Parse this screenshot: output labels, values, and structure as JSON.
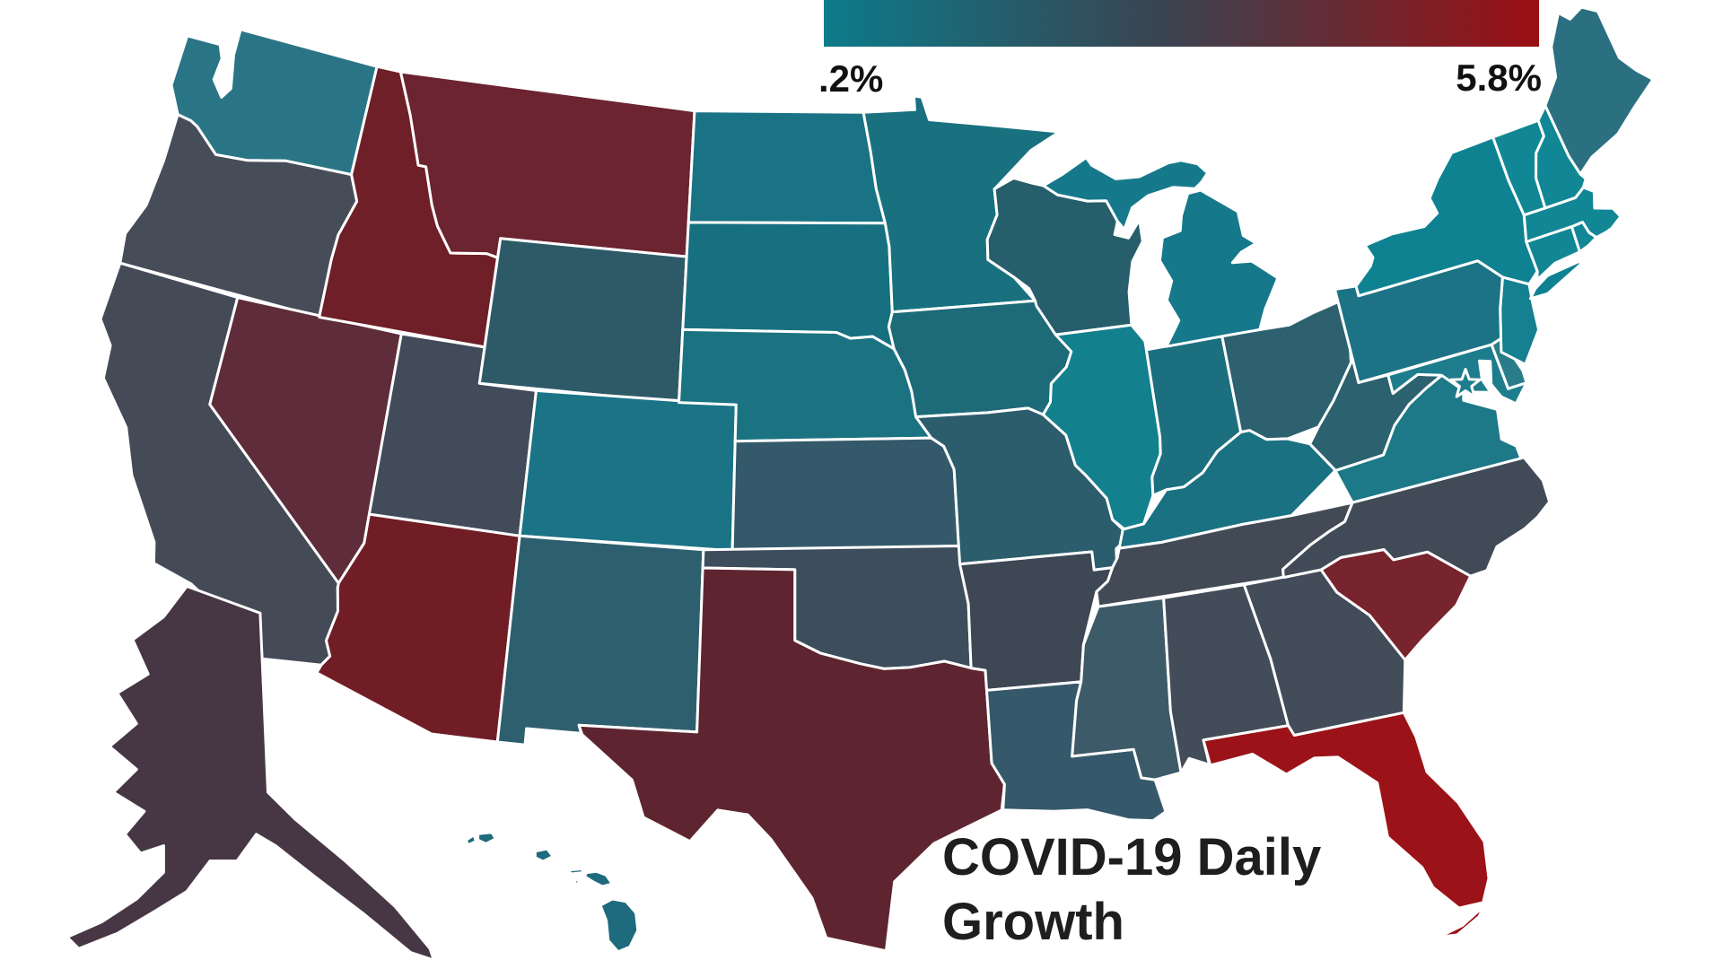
{
  "title": {
    "line1": "COVID-19 Daily",
    "line2": "Growth",
    "color": "#1e1e1e"
  },
  "legend": {
    "min_label": ".2%",
    "max_label": "5.8%",
    "gradient_start": "#0c7b8a",
    "gradient_mid": "#3b4350",
    "gradient_end": "#9b0f13"
  },
  "map": {
    "background": "#ffffff",
    "state_border_color": "#ffffff",
    "dc_marker": {
      "icon": "star-icon",
      "fill": "#1e7d8c"
    },
    "states": [
      {
        "id": "WA",
        "name": "Washington",
        "color": "#2a7585"
      },
      {
        "id": "OR",
        "name": "Oregon",
        "color": "#474c59"
      },
      {
        "id": "CA",
        "name": "California",
        "color": "#454a57"
      },
      {
        "id": "NV",
        "name": "Nevada",
        "color": "#5e2c3a"
      },
      {
        "id": "ID",
        "name": "Idaho",
        "color": "#6e1f27"
      },
      {
        "id": "MT",
        "name": "Montana",
        "color": "#6b2430"
      },
      {
        "id": "WY",
        "name": "Wyoming",
        "color": "#2e5a68"
      },
      {
        "id": "UT",
        "name": "Utah",
        "color": "#414b59"
      },
      {
        "id": "CO",
        "name": "Colorado",
        "color": "#1a7486"
      },
      {
        "id": "AZ",
        "name": "Arizona",
        "color": "#701d26"
      },
      {
        "id": "NM",
        "name": "New Mexico",
        "color": "#2e5f6e"
      },
      {
        "id": "ND",
        "name": "North Dakota",
        "color": "#1a7384"
      },
      {
        "id": "SD",
        "name": "South Dakota",
        "color": "#177080"
      },
      {
        "id": "NE",
        "name": "Nebraska",
        "color": "#1b7381"
      },
      {
        "id": "KS",
        "name": "Kansas",
        "color": "#34596a"
      },
      {
        "id": "OK",
        "name": "Oklahoma",
        "color": "#3e4d5b"
      },
      {
        "id": "TX",
        "name": "Texas",
        "color": "#5e2530"
      },
      {
        "id": "MN",
        "name": "Minnesota",
        "color": "#19717f"
      },
      {
        "id": "IA",
        "name": "Iowa",
        "color": "#1d6a79"
      },
      {
        "id": "MO",
        "name": "Missouri",
        "color": "#2c5d6c"
      },
      {
        "id": "AR",
        "name": "Arkansas",
        "color": "#3e4754"
      },
      {
        "id": "LA",
        "name": "Louisiana",
        "color": "#35596a"
      },
      {
        "id": "WI",
        "name": "Wisconsin",
        "color": "#265e6b"
      },
      {
        "id": "IL",
        "name": "Illinois",
        "color": "#13808e"
      },
      {
        "id": "MI",
        "name": "Michigan",
        "color": "#15798b"
      },
      {
        "id": "IN",
        "name": "Indiana",
        "color": "#1c6f7f"
      },
      {
        "id": "OH",
        "name": "Ohio",
        "color": "#2d6170"
      },
      {
        "id": "KY",
        "name": "Kentucky",
        "color": "#1a7181"
      },
      {
        "id": "TN",
        "name": "Tennessee",
        "color": "#424a56"
      },
      {
        "id": "MS",
        "name": "Mississippi",
        "color": "#3d5a68"
      },
      {
        "id": "AL",
        "name": "Alabama",
        "color": "#434c59"
      },
      {
        "id": "GA",
        "name": "Georgia",
        "color": "#434c59"
      },
      {
        "id": "FL",
        "name": "Florida",
        "color": "#9b1318"
      },
      {
        "id": "SC",
        "name": "South Carolina",
        "color": "#77242e"
      },
      {
        "id": "NC",
        "name": "North Carolina",
        "color": "#414b57"
      },
      {
        "id": "VA",
        "name": "Virginia",
        "color": "#1d7888"
      },
      {
        "id": "WV",
        "name": "West Virginia",
        "color": "#2c6170"
      },
      {
        "id": "MD",
        "name": "Maryland",
        "color": "#1e7d8c"
      },
      {
        "id": "DE",
        "name": "Delaware",
        "color": "#2a7c8a"
      },
      {
        "id": "NJ",
        "name": "New Jersey",
        "color": "#15808f"
      },
      {
        "id": "PA",
        "name": "Pennsylvania",
        "color": "#1c7385"
      },
      {
        "id": "NY",
        "name": "New York",
        "color": "#0f8292"
      },
      {
        "id": "VT",
        "name": "Vermont",
        "color": "#118795"
      },
      {
        "id": "NH",
        "name": "New Hampshire",
        "color": "#118795"
      },
      {
        "id": "ME",
        "name": "Maine",
        "color": "#2a7080"
      },
      {
        "id": "MA",
        "name": "Massachusetts",
        "color": "#118795"
      },
      {
        "id": "CT",
        "name": "Connecticut",
        "color": "#118795"
      },
      {
        "id": "RI",
        "name": "Rhode Island",
        "color": "#118795"
      },
      {
        "id": "AK",
        "name": "Alaska",
        "color": "#473744"
      },
      {
        "id": "HI",
        "name": "Hawaii",
        "color": "#1d6b7c"
      }
    ]
  }
}
